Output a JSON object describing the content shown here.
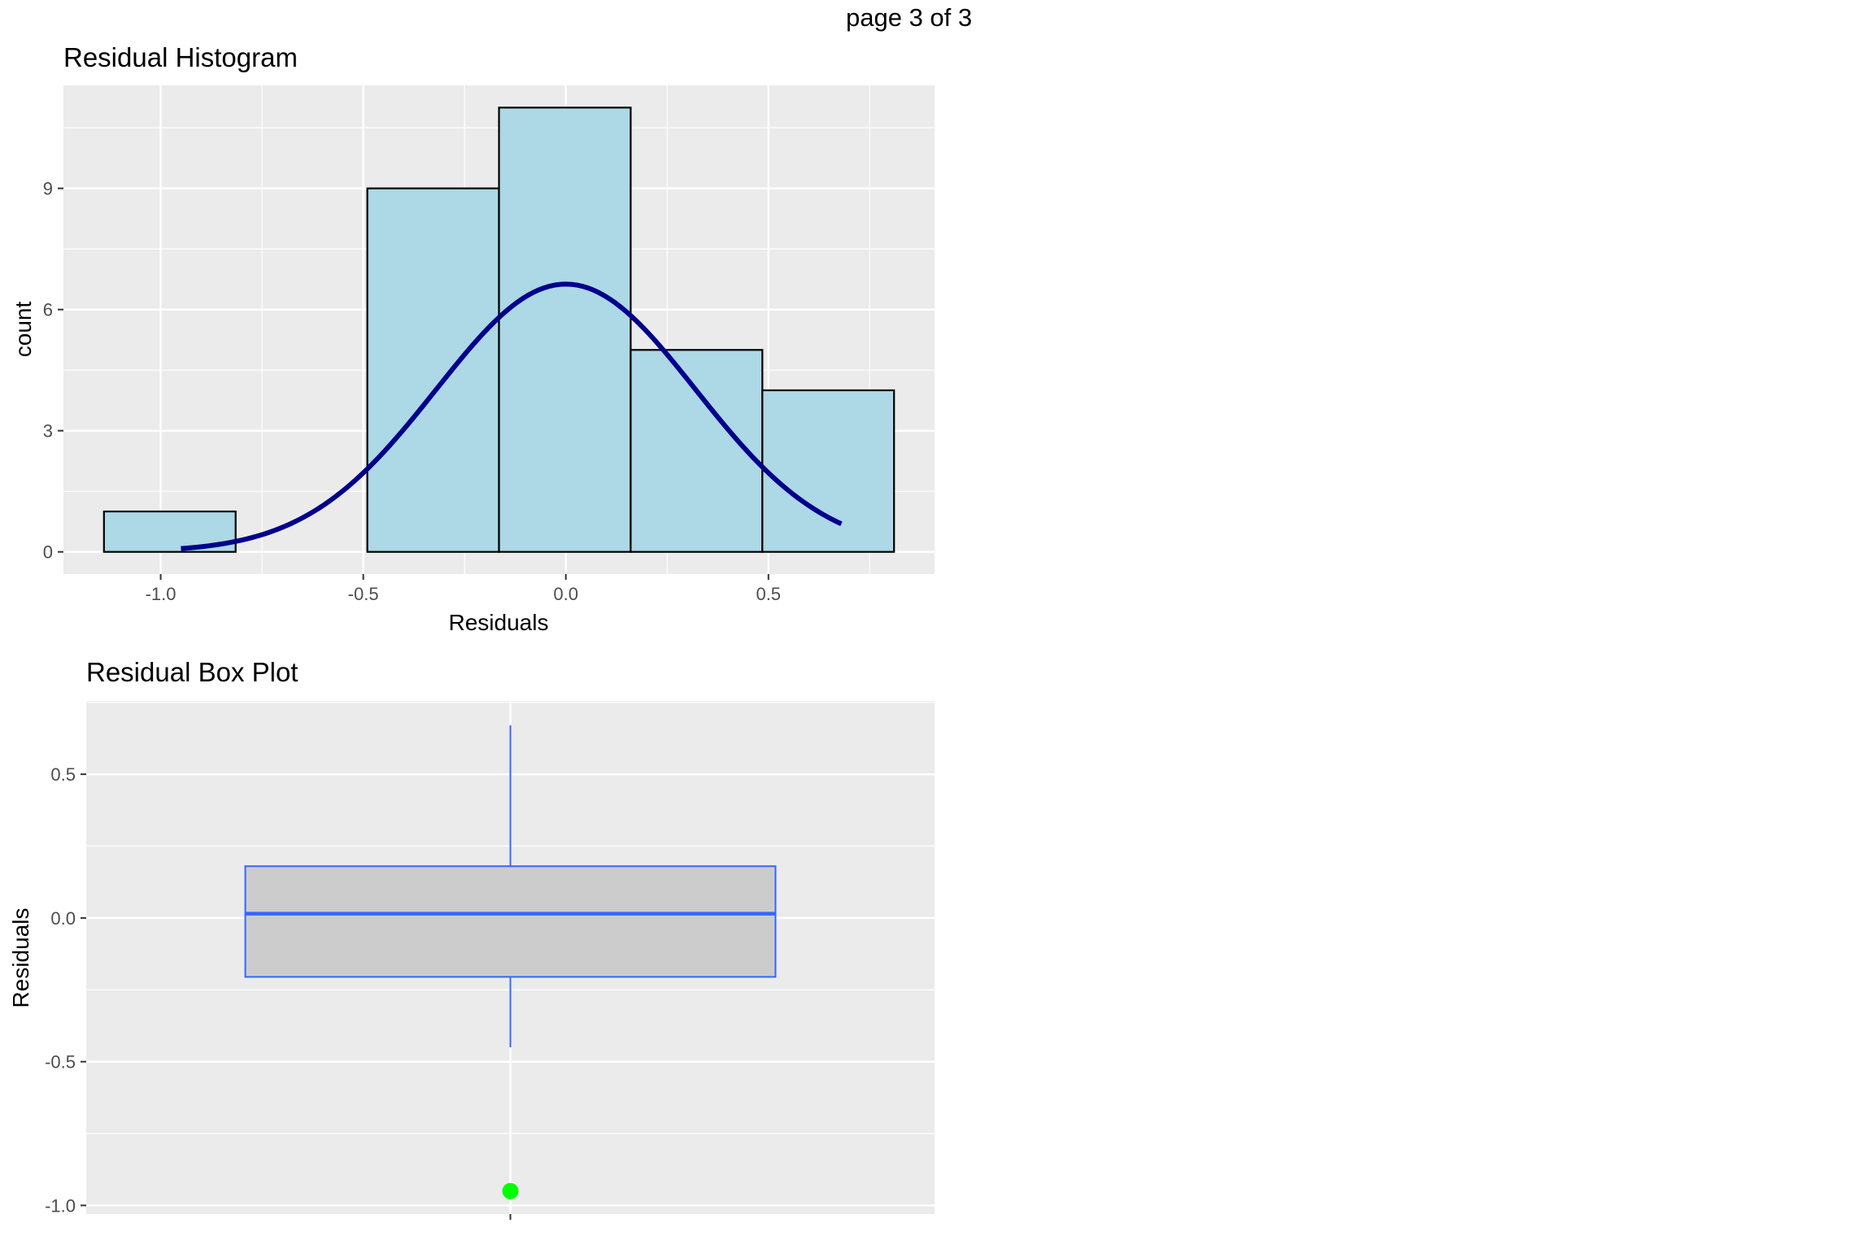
{
  "page": {
    "label": "page 3 of 3"
  },
  "colors": {
    "panel": "#ebebeb",
    "grid": "#ffffff",
    "bar_fill": "#add8e6",
    "bar_stroke": "#000000",
    "curve": "#00008b",
    "box_fill": "#cccccc",
    "box_stroke": "#3366ff",
    "outlier": "#00ff00"
  },
  "chart_data": [
    {
      "type": "bar",
      "subtype": "histogram",
      "title": "Residual Histogram",
      "xlabel": "Residuals",
      "ylabel": "count",
      "bins": [
        {
          "x0": -1.14,
          "x1": -0.815,
          "count": 1
        },
        {
          "x0": -0.815,
          "x1": -0.49,
          "count": 0
        },
        {
          "x0": -0.49,
          "x1": -0.165,
          "count": 9
        },
        {
          "x0": -0.165,
          "x1": 0.16,
          "count": 11
        },
        {
          "x0": 0.16,
          "x1": 0.485,
          "count": 5
        },
        {
          "x0": 0.485,
          "x1": 0.81,
          "count": 4
        }
      ],
      "normal_curve": {
        "mean": 0.0,
        "sd": 0.32,
        "scale": 6.63,
        "x_range": [
          -0.95,
          0.68
        ]
      },
      "xlim": [
        -1.24,
        0.91
      ],
      "ylim": [
        -0.55,
        11.55
      ],
      "x_ticks": [
        -1.0,
        -0.5,
        0.0,
        0.5
      ],
      "x_tick_labels": [
        "-1.0",
        "-0.5",
        "0.0",
        "0.5"
      ],
      "y_ticks": [
        0,
        3,
        6,
        9
      ],
      "y_tick_labels": [
        "0",
        "3",
        "6",
        "9"
      ],
      "grid": true
    },
    {
      "type": "box",
      "title": "Residual Box Plot",
      "ylabel": "Residuals",
      "box": {
        "q1": -0.205,
        "median": 0.015,
        "q3": 0.18,
        "whisker_low": -0.45,
        "whisker_high": 0.67
      },
      "outliers": [
        -0.95
      ],
      "ylim": [
        -1.03,
        0.755
      ],
      "y_ticks": [
        -1.0,
        -0.5,
        0.0,
        0.5
      ],
      "y_tick_labels": [
        "-1.0",
        "-0.5",
        "0.0",
        "0.5"
      ],
      "grid": true
    }
  ]
}
